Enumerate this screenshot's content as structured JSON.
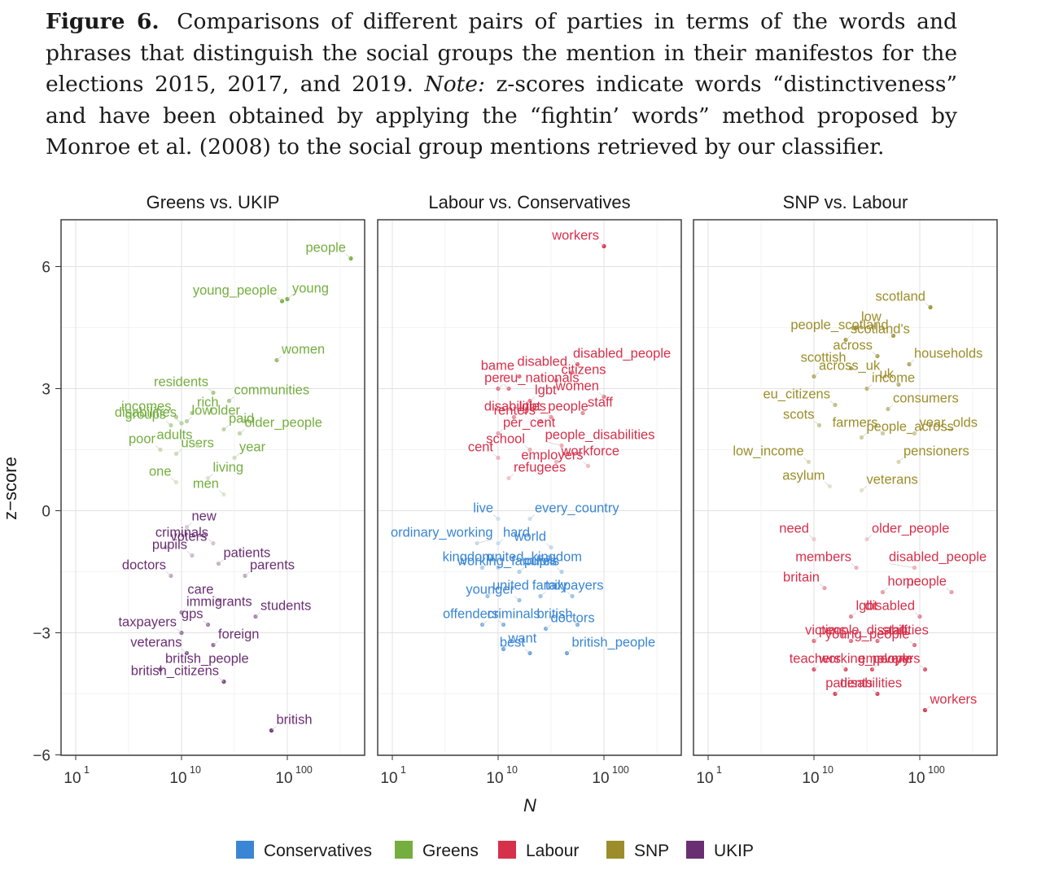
{
  "caption": {
    "figure_label": "Figure 6.",
    "text": "Comparisons of different pairs of parties in terms of the words and phrases that distinguish the social groups the mention in their manifestos for the elections 2015, 2017, and 2019.",
    "note_label": "Note:",
    "note_text": "z-scores indicate words “distinctiveness” and have been obtained by applying the “fightin’ words” method proposed by Monroe et al. (2008) to the social group mentions retrieved by our classifier."
  },
  "chart_data": {
    "type": "scatter",
    "ylabel": "z−score",
    "xlabel": "N",
    "ylim": [
      -6,
      7
    ],
    "xscale": "log",
    "y_ticks": [
      6,
      3,
      0,
      -3,
      -6
    ],
    "y_tick_labels": [
      "6",
      "3",
      "0",
      "−3",
      "−6"
    ],
    "x_tick_labels": [
      {
        "base": "10",
        "exp": "1"
      },
      {
        "base": "10",
        "exp": "10"
      },
      {
        "base": "10",
        "exp": "100"
      }
    ],
    "grid": true,
    "legend_position": "bottom",
    "colors": {
      "Conservatives": "#3a86d4",
      "Greens": "#74ae3f",
      "Labour": "#d6304a",
      "SNP": "#9c8d2a",
      "UKIP": "#6a2f73"
    },
    "legend": [
      "Conservatives",
      "Greens",
      "Labour",
      "SNP",
      "UKIP"
    ],
    "panels": [
      {
        "title": "Greens vs. UKIP",
        "labeled_points": [
          {
            "party": "Greens",
            "label": "people",
            "logN": 2.6,
            "z": 6.2
          },
          {
            "party": "Greens",
            "label": "young",
            "logN": 2.0,
            "z": 5.2
          },
          {
            "party": "Greens",
            "label": "young_people",
            "logN": 1.95,
            "z": 5.15
          },
          {
            "party": "Greens",
            "label": "women",
            "logN": 1.9,
            "z": 3.7
          },
          {
            "party": "Greens",
            "label": "residents",
            "logN": 1.3,
            "z": 2.9
          },
          {
            "party": "Greens",
            "label": "communities",
            "logN": 1.45,
            "z": 2.7
          },
          {
            "party": "Greens",
            "label": "incomes",
            "logN": 0.95,
            "z": 2.3
          },
          {
            "party": "Greens",
            "label": "rich",
            "logN": 1.1,
            "z": 2.4
          },
          {
            "party": "Greens",
            "label": "groups",
            "logN": 0.9,
            "z": 2.1
          },
          {
            "party": "Greens",
            "label": "low",
            "logN": 1.05,
            "z": 2.2
          },
          {
            "party": "Greens",
            "label": "older",
            "logN": 1.6,
            "z": 2.2
          },
          {
            "party": "Greens",
            "label": "paid",
            "logN": 1.4,
            "z": 2.0
          },
          {
            "party": "Greens",
            "label": "disabilities",
            "logN": 1.0,
            "z": 2.15
          },
          {
            "party": "Greens",
            "label": "older_people",
            "logN": 1.55,
            "z": 1.9
          },
          {
            "party": "Greens",
            "label": "poor",
            "logN": 0.8,
            "z": 1.5
          },
          {
            "party": "Greens",
            "label": "users",
            "logN": 0.95,
            "z": 1.4
          },
          {
            "party": "Greens",
            "label": "adults",
            "logN": 1.15,
            "z": 1.6
          },
          {
            "party": "Greens",
            "label": "year",
            "logN": 1.5,
            "z": 1.3
          },
          {
            "party": "Greens",
            "label": "one",
            "logN": 0.95,
            "z": 0.7
          },
          {
            "party": "Greens",
            "label": "living",
            "logN": 1.25,
            "z": 0.8
          },
          {
            "party": "Greens",
            "label": "men",
            "logN": 1.4,
            "z": 0.4
          },
          {
            "party": "UKIP",
            "label": "new",
            "logN": 1.05,
            "z": -0.4
          },
          {
            "party": "UKIP",
            "label": "criminals",
            "logN": 1.3,
            "z": -0.8
          },
          {
            "party": "UKIP",
            "label": "voters",
            "logN": 0.85,
            "z": -0.9
          },
          {
            "party": "UKIP",
            "label": "pupils",
            "logN": 1.1,
            "z": -1.1
          },
          {
            "party": "UKIP",
            "label": "patients",
            "logN": 1.35,
            "z": -1.3
          },
          {
            "party": "UKIP",
            "label": "doctors",
            "logN": 0.9,
            "z": -1.6
          },
          {
            "party": "UKIP",
            "label": "parents",
            "logN": 1.6,
            "z": -1.6
          },
          {
            "party": "UKIP",
            "label": "care",
            "logN": 1.35,
            "z": -2.2
          },
          {
            "party": "UKIP",
            "label": "immigrants",
            "logN": 1.0,
            "z": -2.5
          },
          {
            "party": "UKIP",
            "label": "gps",
            "logN": 1.25,
            "z": -2.8
          },
          {
            "party": "UKIP",
            "label": "students",
            "logN": 1.7,
            "z": -2.6
          },
          {
            "party": "UKIP",
            "label": "taxpayers",
            "logN": 1.0,
            "z": -3.0
          },
          {
            "party": "UKIP",
            "label": "foreign",
            "logN": 1.3,
            "z": -3.3
          },
          {
            "party": "UKIP",
            "label": "veterans",
            "logN": 1.05,
            "z": -3.5
          },
          {
            "party": "UKIP",
            "label": "british_people",
            "logN": 0.8,
            "z": -3.9
          },
          {
            "party": "UKIP",
            "label": "british_citizens",
            "logN": 1.4,
            "z": -4.2
          },
          {
            "party": "UKIP",
            "label": "british",
            "logN": 1.85,
            "z": -5.4
          }
        ]
      },
      {
        "title": "Labour vs. Conservatives",
        "labeled_points": [
          {
            "party": "Labour",
            "label": "workers",
            "logN": 2.0,
            "z": 6.5
          },
          {
            "party": "Labour",
            "label": "disabled_people",
            "logN": 1.75,
            "z": 3.6
          },
          {
            "party": "Labour",
            "label": "bame",
            "logN": 1.2,
            "z": 3.3
          },
          {
            "party": "Labour",
            "label": "citizens",
            "logN": 1.55,
            "z": 3.2
          },
          {
            "party": "Labour",
            "label": "disabled",
            "logN": 1.7,
            "z": 3.4
          },
          {
            "party": "Labour",
            "label": "eu_nationals",
            "logN": 1.0,
            "z": 3.0
          },
          {
            "party": "Labour",
            "label": "per",
            "logN": 1.1,
            "z": 3.0
          },
          {
            "party": "Labour",
            "label": "lgbt",
            "logN": 1.3,
            "z": 2.7
          },
          {
            "party": "Labour",
            "label": "women",
            "logN": 2.0,
            "z": 2.8
          },
          {
            "party": "Labour",
            "label": "lgbt_people",
            "logN": 1.15,
            "z": 2.3
          },
          {
            "party": "Labour",
            "label": "disabilities",
            "logN": 1.5,
            "z": 2.3
          },
          {
            "party": "Labour",
            "label": "staff",
            "logN": 1.8,
            "z": 2.4
          },
          {
            "party": "Labour",
            "label": "renters",
            "logN": 1.4,
            "z": 2.2
          },
          {
            "party": "Labour",
            "label": "per_cent",
            "logN": 1.0,
            "z": 1.9
          },
          {
            "party": "Labour",
            "label": "school",
            "logN": 1.3,
            "z": 1.5
          },
          {
            "party": "Labour",
            "label": "people_disabilities",
            "logN": 1.6,
            "z": 1.6
          },
          {
            "party": "Labour",
            "label": "cent",
            "logN": 1.0,
            "z": 1.3
          },
          {
            "party": "Labour",
            "label": "workforce",
            "logN": 1.55,
            "z": 1.2
          },
          {
            "party": "Labour",
            "label": "employers",
            "logN": 1.85,
            "z": 1.1
          },
          {
            "party": "Labour",
            "label": "refugees",
            "logN": 1.1,
            "z": 0.8
          },
          {
            "party": "Conservatives",
            "label": "live",
            "logN": 1.0,
            "z": -0.2
          },
          {
            "party": "Conservatives",
            "label": "every_country",
            "logN": 1.3,
            "z": -0.2
          },
          {
            "party": "Conservatives",
            "label": "ordinary_working",
            "logN": 0.8,
            "z": -0.8
          },
          {
            "party": "Conservatives",
            "label": "hard",
            "logN": 1.0,
            "z": -0.8
          },
          {
            "party": "Conservatives",
            "label": "world",
            "logN": 1.5,
            "z": -0.9
          },
          {
            "party": "Conservatives",
            "label": "united_kingdom",
            "logN": 0.85,
            "z": -1.4
          },
          {
            "party": "Conservatives",
            "label": "kingdom",
            "logN": 1.0,
            "z": -1.4
          },
          {
            "party": "Conservatives",
            "label": "pupils",
            "logN": 1.2,
            "z": -1.5
          },
          {
            "party": "Conservatives",
            "label": "working_families",
            "logN": 1.6,
            "z": -1.5
          },
          {
            "party": "Conservatives",
            "label": "united",
            "logN": 0.9,
            "z": -2.1
          },
          {
            "party": "Conservatives",
            "label": "younger",
            "logN": 1.2,
            "z": -2.2
          },
          {
            "party": "Conservatives",
            "label": "taxpayers",
            "logN": 1.4,
            "z": -2.1
          },
          {
            "party": "Conservatives",
            "label": "family",
            "logN": 1.7,
            "z": -2.1
          },
          {
            "party": "Conservatives",
            "label": "criminals",
            "logN": 0.85,
            "z": -2.8
          },
          {
            "party": "Conservatives",
            "label": "offenders",
            "logN": 1.05,
            "z": -2.8
          },
          {
            "party": "Conservatives",
            "label": "doctors",
            "logN": 1.45,
            "z": -2.9
          },
          {
            "party": "Conservatives",
            "label": "british",
            "logN": 1.75,
            "z": -2.8
          },
          {
            "party": "Conservatives",
            "label": "want",
            "logN": 1.05,
            "z": -3.4
          },
          {
            "party": "Conservatives",
            "label": "best",
            "logN": 1.3,
            "z": -3.5
          },
          {
            "party": "Conservatives",
            "label": "british_people",
            "logN": 1.65,
            "z": -3.5
          }
        ]
      },
      {
        "title": "SNP vs. Labour",
        "labeled_points": [
          {
            "party": "SNP",
            "label": "scotland",
            "logN": 2.1,
            "z": 5.0
          },
          {
            "party": "SNP",
            "label": "low",
            "logN": 1.4,
            "z": 4.5
          },
          {
            "party": "SNP",
            "label": "people_scotland",
            "logN": 1.75,
            "z": 4.3
          },
          {
            "party": "SNP",
            "label": "scotland's",
            "logN": 1.3,
            "z": 4.2
          },
          {
            "party": "SNP",
            "label": "across",
            "logN": 1.6,
            "z": 3.8
          },
          {
            "party": "SNP",
            "label": "households",
            "logN": 1.9,
            "z": 3.6
          },
          {
            "party": "SNP",
            "label": "scottish",
            "logN": 1.35,
            "z": 3.5
          },
          {
            "party": "SNP",
            "label": "across_uk",
            "logN": 1.0,
            "z": 3.3
          },
          {
            "party": "SNP",
            "label": "uk",
            "logN": 1.8,
            "z": 3.1
          },
          {
            "party": "SNP",
            "label": "income",
            "logN": 1.5,
            "z": 3.0
          },
          {
            "party": "SNP",
            "label": "eu_citizens",
            "logN": 1.2,
            "z": 2.6
          },
          {
            "party": "SNP",
            "label": "consumers",
            "logN": 1.7,
            "z": 2.5
          },
          {
            "party": "SNP",
            "label": "scots",
            "logN": 1.05,
            "z": 2.1
          },
          {
            "party": "SNP",
            "label": "people_across",
            "logN": 1.45,
            "z": 1.8
          },
          {
            "party": "SNP",
            "label": "farmers",
            "logN": 1.65,
            "z": 1.9
          },
          {
            "party": "SNP",
            "label": "year_olds",
            "logN": 1.95,
            "z": 1.9
          },
          {
            "party": "SNP",
            "label": "low_income",
            "logN": 0.95,
            "z": 1.2
          },
          {
            "party": "SNP",
            "label": "pensioners",
            "logN": 1.8,
            "z": 1.2
          },
          {
            "party": "SNP",
            "label": "asylum",
            "logN": 1.15,
            "z": 0.6
          },
          {
            "party": "SNP",
            "label": "veterans",
            "logN": 1.45,
            "z": 0.5
          },
          {
            "party": "Labour",
            "label": "need",
            "logN": 1.0,
            "z": -0.7
          },
          {
            "party": "Labour",
            "label": "older_people",
            "logN": 1.5,
            "z": -0.7
          },
          {
            "party": "Labour",
            "label": "members",
            "logN": 1.4,
            "z": -1.4
          },
          {
            "party": "Labour",
            "label": "disabled_people",
            "logN": 1.95,
            "z": -1.4
          },
          {
            "party": "Labour",
            "label": "britain",
            "logN": 1.1,
            "z": -1.9
          },
          {
            "party": "Labour",
            "label": "home",
            "logN": 1.65,
            "z": -2.0
          },
          {
            "party": "Labour",
            "label": "people",
            "logN": 2.3,
            "z": -2.0
          },
          {
            "party": "Labour",
            "label": "lgbt",
            "logN": 1.35,
            "z": -2.6
          },
          {
            "party": "Labour",
            "label": "disabled",
            "logN": 2.0,
            "z": -2.6
          },
          {
            "party": "Labour",
            "label": "people_disabilities",
            "logN": 1.0,
            "z": -3.2
          },
          {
            "party": "Labour",
            "label": "victims",
            "logN": 1.35,
            "z": -3.2
          },
          {
            "party": "Labour",
            "label": "staff",
            "logN": 1.6,
            "z": -3.2
          },
          {
            "party": "Labour",
            "label": "young_people",
            "logN": 1.95,
            "z": -3.3
          },
          {
            "party": "Labour",
            "label": "working_people",
            "logN": 1.0,
            "z": -3.9
          },
          {
            "party": "Labour",
            "label": "teachers",
            "logN": 1.3,
            "z": -3.9
          },
          {
            "party": "Labour",
            "label": "every",
            "logN": 1.55,
            "z": -3.9
          },
          {
            "party": "Labour",
            "label": "employers",
            "logN": 2.05,
            "z": -3.9
          },
          {
            "party": "Labour",
            "label": "disabilities",
            "logN": 1.2,
            "z": -4.5
          },
          {
            "party": "Labour",
            "label": "patients",
            "logN": 1.6,
            "z": -4.5
          },
          {
            "party": "Labour",
            "label": "workers",
            "logN": 2.05,
            "z": -4.9
          }
        ]
      }
    ]
  }
}
